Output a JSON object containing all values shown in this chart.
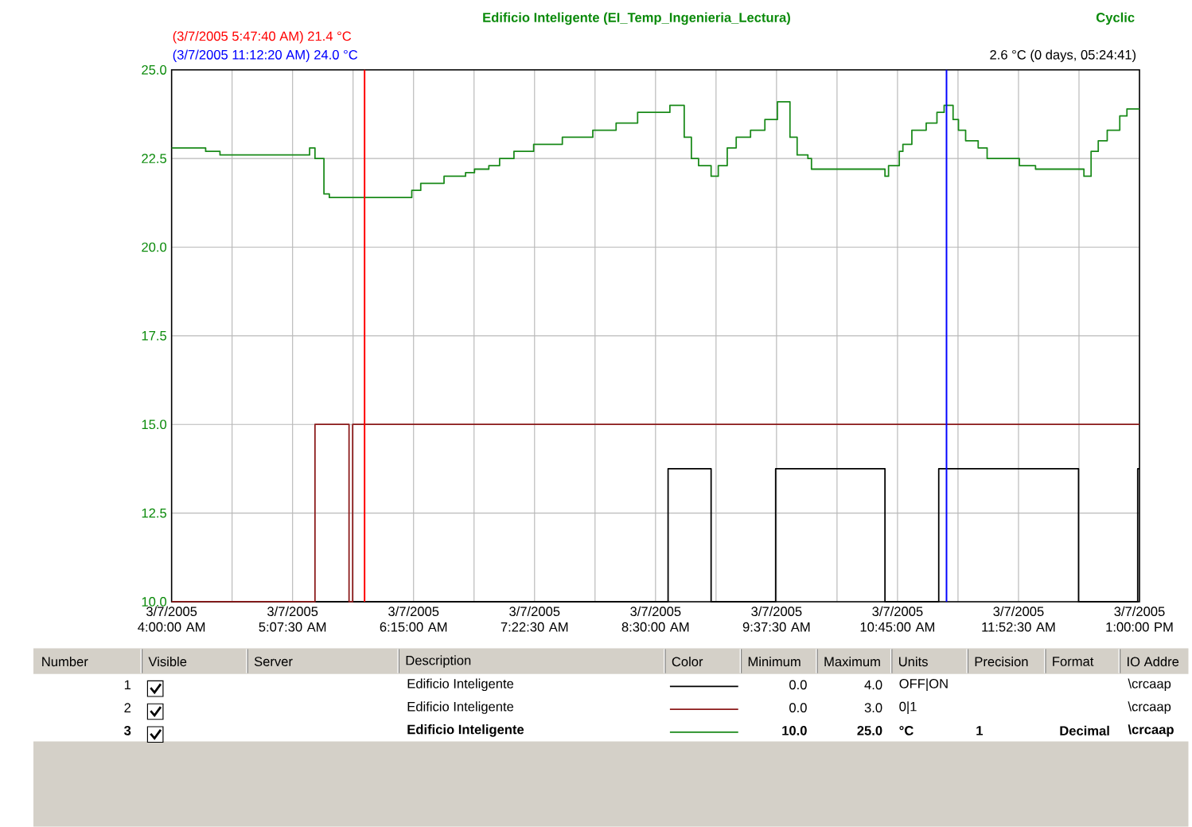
{
  "chart_data": {
    "type": "step",
    "title": "Edificio Inteligente (EI_Temp_Ingenieria_Lectura)",
    "xlim": [
      "2005-03-07T04:00",
      "2005-03-07T13:00"
    ],
    "ylim": [
      10,
      25
    ],
    "xticks": [
      {
        "value": "2005-03-07T04:00",
        "label": "3/7/2005 4:00:00 AM"
      },
      {
        "value": "2005-03-07T04:33:45",
        "label": null
      },
      {
        "value": "2005-03-07T05:07:30",
        "label": "3/7/2005 5:07:30 AM"
      },
      {
        "value": "2005-03-07T05:41:15",
        "label": null
      },
      {
        "value": "2005-03-07T06:15",
        "label": "3/7/2005 6:15:00 AM"
      },
      {
        "value": "2005-03-07T06:48:45",
        "label": null
      },
      {
        "value": "2005-03-07T07:22:30",
        "label": "3/7/2005 7:22:30 AM"
      },
      {
        "value": "2005-03-07T07:56:15",
        "label": null
      },
      {
        "value": "2005-03-07T08:30",
        "label": "3/7/2005 8:30:00 AM"
      },
      {
        "value": "2005-03-07T09:03:45",
        "label": null
      },
      {
        "value": "2005-03-07T09:37:30",
        "label": "3/7/2005 9:37:30 AM"
      },
      {
        "value": "2005-03-07T10:11:15",
        "label": null
      },
      {
        "value": "2005-03-07T10:45",
        "label": "3/7/2005 10:45:00 AM"
      },
      {
        "value": "2005-03-07T11:18:45",
        "label": null
      },
      {
        "value": "2005-03-07T11:52:30",
        "label": "3/7/2005 11:52:30 AM"
      },
      {
        "value": "2005-03-07T12:26:15",
        "label": null
      },
      {
        "value": "2005-03-07T13:00",
        "label": "3/7/2005 1:00:00 PM"
      }
    ],
    "yticks": [
      {
        "value": 10,
        "label": "10.0"
      },
      12.5,
      {
        "value": 15,
        "label": "15.0"
      },
      17.5,
      {
        "value": 20,
        "label": "20.0"
      },
      22.5,
      {
        "value": 25,
        "label": "25.0"
      }
    ],
    "grid": true,
    "marker": "none",
    "series": [
      {
        "color": "#000000",
        "x": [
          "2005-03-07T04:00",
          "2005-03-07T08:37",
          "2005-03-07T09:01",
          "2005-03-07T09:37",
          "2005-03-07T10:38",
          "2005-03-07T11:08",
          "2005-03-07T12:26",
          "2005-03-07T12:59",
          "2005-03-07T13:00"
        ],
        "values": [
          10,
          13.75,
          10,
          13.75,
          10,
          13.75,
          10,
          13.75,
          13.75
        ]
      },
      {
        "color": "#8b1a1a",
        "x": [
          "2005-03-07T04:00",
          "2005-03-07T05:20",
          "2005-03-07T05:39",
          "2005-03-07T05:41",
          "2005-03-07T13:00"
        ],
        "values": [
          10,
          15,
          10,
          15,
          15
        ]
      },
      {
        "color": "#1a8a1a",
        "x": [
          "2005-03-07T04:00",
          "2005-03-07T04:19",
          "2005-03-07T04:27",
          "2005-03-07T05:17",
          "2005-03-07T05:20",
          "2005-03-07T05:25",
          "2005-03-07T05:28",
          "2005-03-07T06:14",
          "2005-03-07T06:19",
          "2005-03-07T06:32",
          "2005-03-07T06:44",
          "2005-03-07T06:49",
          "2005-03-07T06:57",
          "2005-03-07T07:03",
          "2005-03-07T07:11",
          "2005-03-07T07:22",
          "2005-03-07T07:38",
          "2005-03-07T07:55",
          "2005-03-07T08:08",
          "2005-03-07T08:20",
          "2005-03-07T08:38",
          "2005-03-07T08:46",
          "2005-03-07T08:50",
          "2005-03-07T08:54",
          "2005-03-07T09:01",
          "2005-03-07T09:05",
          "2005-03-07T09:10",
          "2005-03-07T09:15",
          "2005-03-07T09:23",
          "2005-03-07T09:31",
          "2005-03-07T09:38",
          "2005-03-07T09:45",
          "2005-03-07T09:49",
          "2005-03-07T09:55",
          "2005-03-07T09:57",
          "2005-03-07T10:38",
          "2005-03-07T10:40",
          "2005-03-07T10:46",
          "2005-03-07T10:48",
          "2005-03-07T10:53",
          "2005-03-07T11:01",
          "2005-03-07T11:07",
          "2005-03-07T11:11",
          "2005-03-07T11:16",
          "2005-03-07T11:19",
          "2005-03-07T11:23",
          "2005-03-07T11:30",
          "2005-03-07T11:35",
          "2005-03-07T11:53",
          "2005-03-07T12:02",
          "2005-03-07T12:29",
          "2005-03-07T12:33",
          "2005-03-07T12:37",
          "2005-03-07T12:42",
          "2005-03-07T12:49",
          "2005-03-07T12:53",
          "2005-03-07T13:00"
        ],
        "values": [
          22.8,
          22.7,
          22.6,
          22.8,
          22.5,
          21.5,
          21.4,
          21.6,
          21.8,
          22.0,
          22.1,
          22.2,
          22.3,
          22.5,
          22.7,
          22.9,
          23.1,
          23.3,
          23.5,
          23.8,
          24.0,
          23.1,
          22.5,
          22.3,
          22.0,
          22.3,
          22.8,
          23.1,
          23.3,
          23.6,
          24.1,
          23.1,
          22.6,
          22.5,
          22.2,
          22.0,
          22.3,
          22.7,
          22.9,
          23.3,
          23.5,
          23.8,
          24.0,
          23.6,
          23.3,
          23.0,
          22.8,
          22.5,
          22.3,
          22.2,
          22.0,
          22.7,
          23.0,
          23.3,
          23.7,
          23.9,
          23.9
        ]
      }
    ],
    "ref_lines": [
      {
        "axis": "x",
        "value": "2005-03-07T05:47:40",
        "label": "(3/7/2005 5:47:40 AM) 21.4 °C",
        "color": "#ff0000"
      },
      {
        "axis": "x",
        "value": "2005-03-07T11:12:20",
        "label": "(3/7/2005 11:12:20 AM) 24.0 °C",
        "color": "#0000ff"
      }
    ],
    "annotations": [
      "Cyclic",
      "2.6 °C (0 days, 05:24:41)",
      "Number",
      "Visible",
      "Server",
      "Description",
      "Color",
      "Minimum",
      "Maximum",
      "Units",
      "Precision",
      "Format",
      "IO Addre",
      "1",
      "Edificio Inteligente",
      "0.0",
      "4.0",
      "OFF|ON",
      "\\crcaap",
      "2",
      "Edificio Inteligente",
      "0.0",
      "3.0",
      "0|1",
      "\\crcaap",
      "3",
      "Edificio Inteligente",
      "10.0",
      "25.0",
      "°C",
      "1",
      "Decimal",
      "\\crcaap"
    ]
  }
}
